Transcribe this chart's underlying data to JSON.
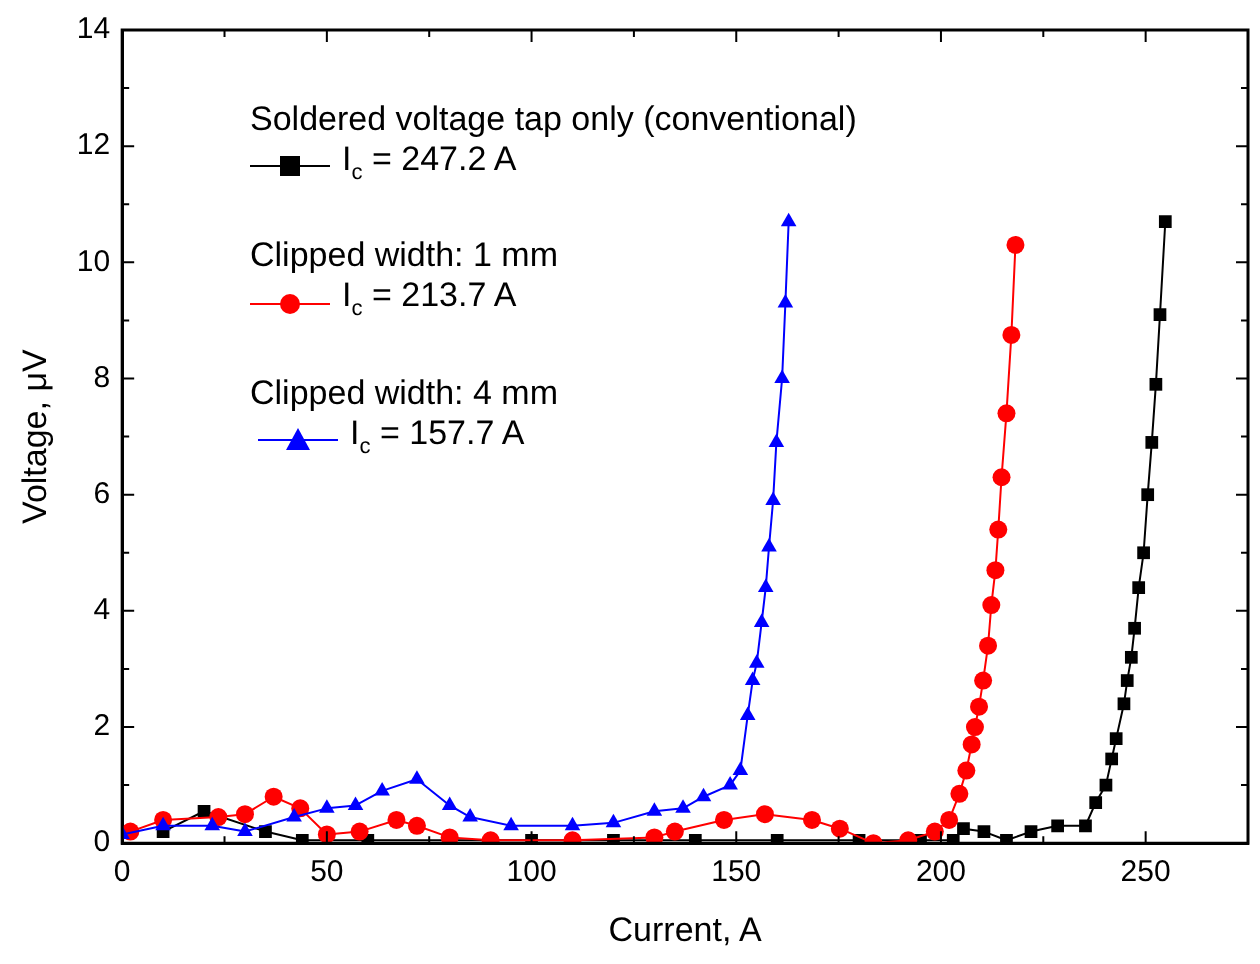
{
  "chart_data": {
    "type": "line",
    "xlabel": "Current, A",
    "ylabel": "Voltage, μV",
    "xlim": [
      0,
      275
    ],
    "ylim": [
      0,
      14
    ],
    "xticks": [
      0,
      {
        "value": 25,
        "label": null
      },
      50,
      {
        "value": 75,
        "label": null
      },
      100,
      {
        "value": 125,
        "label": null
      },
      150,
      {
        "value": 175,
        "label": null
      },
      200,
      {
        "value": 225,
        "label": null
      },
      250,
      {
        "value": 275,
        "label": null
      }
    ],
    "yticks": [
      0,
      {
        "value": 1,
        "label": null
      },
      2,
      {
        "value": 3,
        "label": null
      },
      4,
      {
        "value": 5,
        "label": null
      },
      6,
      {
        "value": 7,
        "label": null
      },
      8,
      {
        "value": 9,
        "label": null
      },
      10,
      {
        "value": 11,
        "label": null
      },
      12,
      {
        "value": 13,
        "label": null
      },
      14
    ],
    "legend": "top left",
    "grid": false,
    "annotations": [
      "Soldered voltage tap only (conventional)",
      "Clipped width: 1 mm",
      "Clipped width: 4 mm"
    ],
    "series": [
      {
        "name": "I$_{c}$ = 247.2 A",
        "color": "#000000",
        "marker": "square",
        "x": [
          10,
          20,
          35,
          44,
          60,
          80,
          100,
          120,
          140,
          160,
          180,
          195,
          203,
          205.5,
          210.5,
          216,
          222,
          228.5,
          235.3,
          237.8,
          240.3,
          241.7,
          242.8,
          244.7,
          245.5,
          246.5,
          247.3,
          248.3,
          249.5,
          250.5,
          251.5,
          252.5,
          253.5,
          254.8
        ],
        "values": [
          0.2,
          0.55,
          0.2,
          0.05,
          0.05,
          0.05,
          0.05,
          0.05,
          0.05,
          0.05,
          0.05,
          0.05,
          0.05,
          0.25,
          0.2,
          0.05,
          0.2,
          0.3,
          0.3,
          0.7,
          1.0,
          1.45,
          1.8,
          2.4,
          2.8,
          3.2,
          3.7,
          4.4,
          5.0,
          6.0,
          6.9,
          7.9,
          9.1,
          10.7
        ]
      },
      {
        "name": "I$_{c}$ = 213.7 A",
        "color": "#ff0000",
        "marker": "circle",
        "x": [
          2,
          10,
          23.5,
          30,
          37,
          43.5,
          50,
          58,
          67,
          72,
          80,
          90,
          110,
          130,
          135,
          147,
          157,
          168.5,
          175.3,
          183.5,
          192,
          198.5,
          202,
          204.5,
          206.2,
          207.5,
          208.3,
          209.3,
          210.3,
          211.5,
          212.3,
          213.3,
          214,
          214.8,
          216,
          217.2,
          218.2
        ],
        "values": [
          0.2,
          0.4,
          0.45,
          0.5,
          0.8,
          0.6,
          0.15,
          0.2,
          0.4,
          0.3,
          0.1,
          0.05,
          0.05,
          0.1,
          0.2,
          0.4,
          0.5,
          0.4,
          0.25,
          0.0,
          0.05,
          0.2,
          0.4,
          0.85,
          1.25,
          1.7,
          2.0,
          2.35,
          2.8,
          3.4,
          4.1,
          4.7,
          5.4,
          6.3,
          7.4,
          8.75,
          10.3
        ]
      },
      {
        "name": "I$_{c}$ = 157.7 A",
        "color": "#0000ff",
        "marker": "triangle",
        "x": [
          0,
          10,
          22,
          30,
          42,
          50,
          57,
          63.5,
          72,
          80,
          85,
          95,
          110,
          120,
          130,
          137,
          142,
          148.5,
          151,
          152.8,
          154,
          155,
          156.2,
          157.2,
          158,
          159,
          159.8,
          161.2,
          162,
          162.8
        ],
        "values": [
          0.15,
          0.3,
          0.3,
          0.2,
          0.45,
          0.6,
          0.65,
          0.9,
          1.1,
          0.65,
          0.45,
          0.3,
          0.3,
          0.35,
          0.55,
          0.6,
          0.8,
          1.0,
          1.25,
          2.2,
          2.8,
          3.1,
          3.8,
          4.4,
          5.1,
          5.9,
          6.9,
          8.0,
          9.3,
          10.7
        ]
      }
    ]
  }
}
